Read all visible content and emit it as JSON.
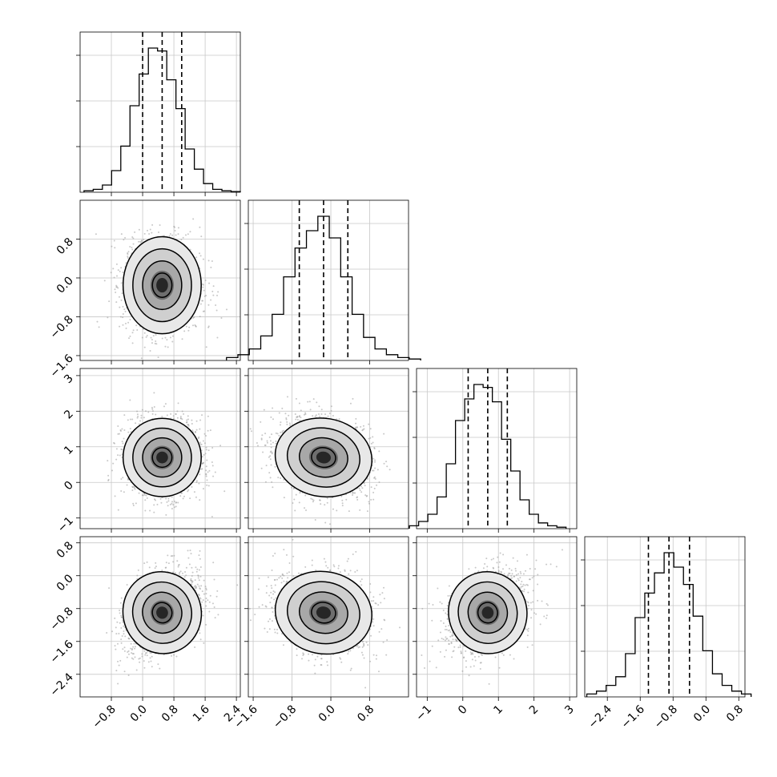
{
  "chart_data": {
    "type": "corner",
    "dimensions": 4,
    "grid": true,
    "quantile_lines": "dashed",
    "axes": [
      {
        "range": [
          -1.6,
          2.5
        ],
        "ticks": [
          "−0.8",
          "0.0",
          "0.8",
          "1.6",
          "2.4"
        ],
        "tick_values": [
          -0.8,
          0.0,
          0.8,
          1.6,
          2.4
        ],
        "quantiles": [
          0.0,
          0.5,
          1.0
        ],
        "mean": 0.5,
        "sd": 0.5
      },
      {
        "range": [
          -1.7,
          1.6
        ],
        "ticks": [
          "−1.6",
          "−0.8",
          "0.0",
          "0.8"
        ],
        "tick_values": [
          -1.6,
          -0.8,
          0.0,
          0.8
        ],
        "quantiles": [
          -0.65,
          -0.15,
          0.35
        ],
        "mean": -0.15,
        "sd": 0.5
      },
      {
        "range": [
          -1.3,
          3.2
        ],
        "ticks": [
          "−1",
          "0",
          "1",
          "2",
          "3"
        ],
        "tick_values": [
          -1,
          0,
          1,
          2,
          3
        ],
        "quantiles": [
          0.15,
          0.7,
          1.25
        ],
        "mean": 0.7,
        "sd": 0.55
      },
      {
        "range": [
          -2.95,
          0.95
        ],
        "ticks": [
          "−2.4",
          "−1.6",
          "−0.8",
          "0.0",
          "0.8"
        ],
        "tick_values": [
          -2.4,
          -1.6,
          -0.8,
          0.0,
          0.8
        ],
        "quantiles": [
          -1.4,
          -0.9,
          -0.4
        ],
        "mean": -0.9,
        "sd": 0.5
      }
    ],
    "correlations": {
      "1-0": 0.0,
      "2-0": 0.0,
      "2-1": -0.2,
      "3-0": 0.4,
      "3-1": -0.25,
      "3-2": 0.3
    },
    "histograms": [
      [
        0.01,
        0.02,
        0.05,
        0.15,
        0.32,
        0.6,
        0.82,
        1.0,
        0.98,
        0.78,
        0.58,
        0.3,
        0.16,
        0.06,
        0.02,
        0.01,
        0.005
      ],
      [
        0.02,
        0.04,
        0.08,
        0.17,
        0.32,
        0.58,
        0.78,
        0.9,
        1.0,
        0.85,
        0.58,
        0.32,
        0.16,
        0.08,
        0.04,
        0.02,
        0.01
      ],
      [
        0.02,
        0.05,
        0.1,
        0.22,
        0.45,
        0.75,
        0.9,
        1.0,
        0.98,
        0.88,
        0.62,
        0.4,
        0.2,
        0.1,
        0.04,
        0.02,
        0.01
      ],
      [
        0.02,
        0.04,
        0.08,
        0.14,
        0.3,
        0.55,
        0.72,
        0.86,
        1.0,
        0.9,
        0.78,
        0.56,
        0.32,
        0.16,
        0.08,
        0.04,
        0.02
      ]
    ]
  }
}
